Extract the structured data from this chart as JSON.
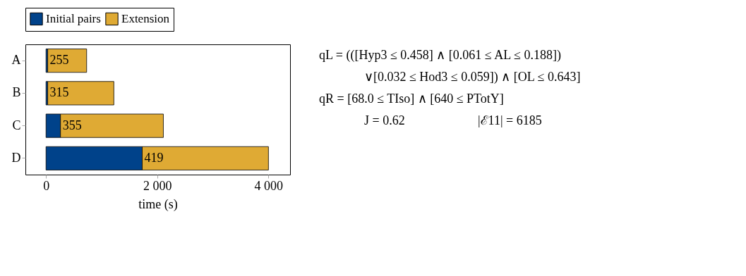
{
  "chart_data": {
    "type": "bar",
    "orientation": "horizontal",
    "stacked": true,
    "categories": [
      "A",
      "B",
      "C",
      "D"
    ],
    "series": [
      {
        "name": "Initial pairs",
        "color": "#00428a",
        "values": [
          30,
          30,
          260,
          1730
        ]
      },
      {
        "name": "Extension",
        "color": "#dfaa34",
        "values": [
          700,
          1190,
          1850,
          2270
        ]
      }
    ],
    "xlabel": "time (s)",
    "xlim": [
      -371,
      4389
    ],
    "xticks": [
      0,
      {
        "value": 2000,
        "label": "2 000"
      },
      {
        "value": 4000,
        "label": "4 000"
      }
    ],
    "grid": false,
    "legend": "top",
    "annotations": [
      {
        "text": "255",
        "x": 30,
        "y": "A"
      },
      {
        "text": "315",
        "x": 30,
        "y": "B"
      },
      {
        "text": "355",
        "x": 260,
        "y": "C"
      },
      {
        "text": "419",
        "x": 1730,
        "y": "D"
      },
      "qL = (([Hyp3 ≤ 0.458] ∧ [0.061 ≤ AL ≤ 0.188])",
      "∨[0.032 ≤ Hod3 ≤ 0.059]) ∧ [OL ≤ 0.643]",
      "qR = [68.0 ≤ TIso] ∧ [640 ≤ PTotY]",
      "J = 0.62",
      "|ℰ11| = 6185"
    ]
  }
}
